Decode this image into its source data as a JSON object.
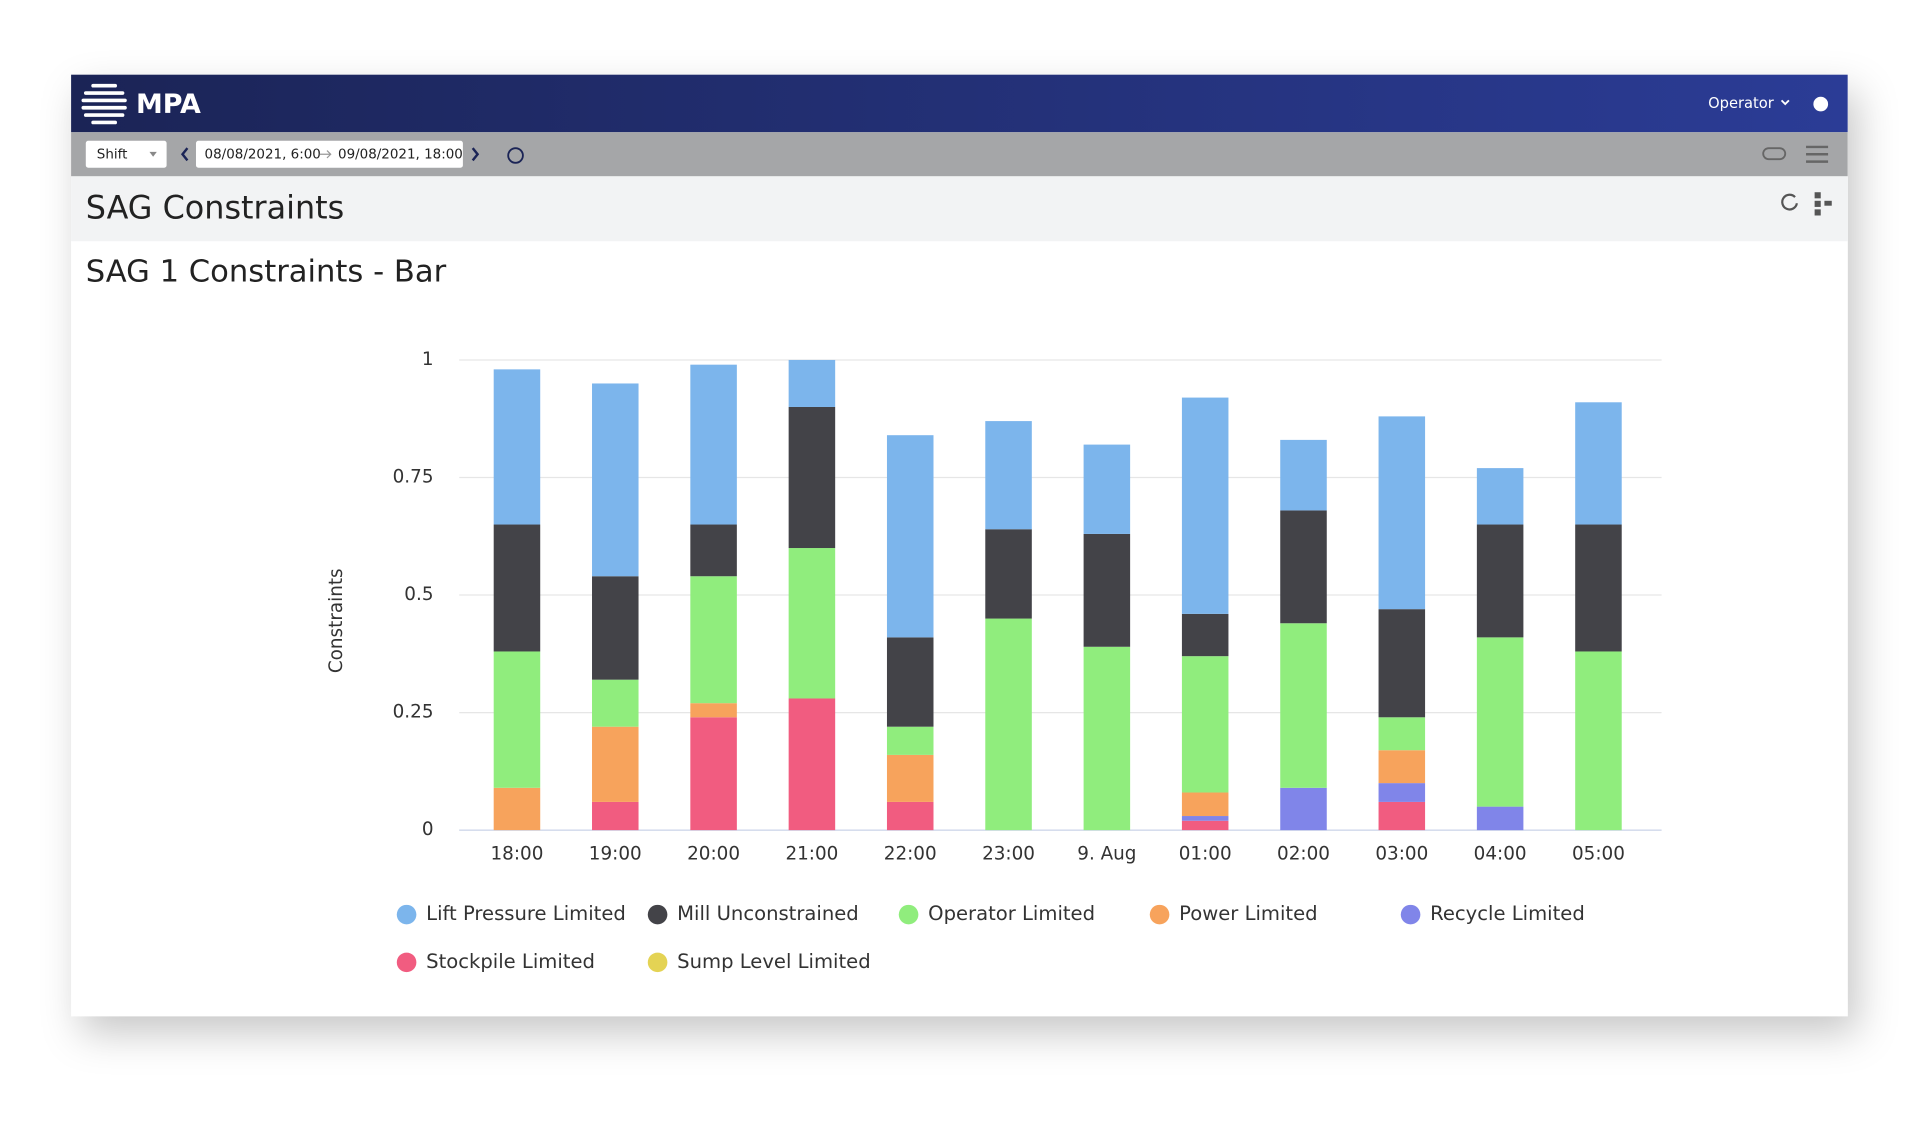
{
  "header": {
    "brand": "MPA",
    "user": "Operator"
  },
  "toolbar": {
    "period": "Shift",
    "date_from": "08/08/2021, 6:00",
    "date_to": "09/08/2021, 18:00"
  },
  "page_title": "SAG Constraints",
  "chart_data": {
    "type": "stacked-bar",
    "title": "SAG 1 Constraints - Bar",
    "y_label": "Constraints",
    "categories": [
      "18:00",
      "19:00",
      "20:00",
      "21:00",
      "22:00",
      "23:00",
      "9. Aug",
      "01:00",
      "02:00",
      "03:00",
      "04:00",
      "05:00"
    ],
    "series": [
      {
        "name": "Lift Pressure Limited",
        "color": "#7cb5ec",
        "values": [
          0.33,
          0.41,
          0.34,
          0.1,
          0.43,
          0.23,
          0.19,
          0.46,
          0.15,
          0.41,
          0.12,
          0.26
        ]
      },
      {
        "name": "Mill Unconstrained",
        "color": "#434348",
        "values": [
          0.27,
          0.22,
          0.11,
          0.3,
          0.19,
          0.19,
          0.24,
          0.09,
          0.24,
          0.23,
          0.24,
          0.27
        ]
      },
      {
        "name": "Operator Limited",
        "color": "#90ed7d",
        "values": [
          0.29,
          0.1,
          0.27,
          0.32,
          0.06,
          0.45,
          0.39,
          0.29,
          0.35,
          0.07,
          0.36,
          0.38
        ]
      },
      {
        "name": "Power Limited",
        "color": "#f7a35c",
        "values": [
          0.09,
          0.16,
          0.03,
          0,
          0.1,
          0,
          0,
          0.05,
          0,
          0.07,
          0,
          0
        ]
      },
      {
        "name": "Recycle Limited",
        "color": "#8085e9",
        "values": [
          0,
          0,
          0,
          0,
          0,
          0,
          0,
          0.01,
          0.09,
          0.04,
          0.05,
          0
        ]
      },
      {
        "name": "Stockpile Limited",
        "color": "#f15c80",
        "values": [
          0,
          0.06,
          0.24,
          0.28,
          0.06,
          0,
          0,
          0.02,
          0,
          0.06,
          0,
          0
        ]
      },
      {
        "name": "Sump Level Limited",
        "color": "#e4d354",
        "values": [
          0,
          0,
          0,
          0,
          0,
          0,
          0,
          0,
          0,
          0,
          0,
          0
        ]
      }
    ],
    "ylim": [
      0,
      1
    ],
    "yticks": [
      0,
      0.25,
      0.5,
      0.75,
      1
    ],
    "grid": true
  }
}
